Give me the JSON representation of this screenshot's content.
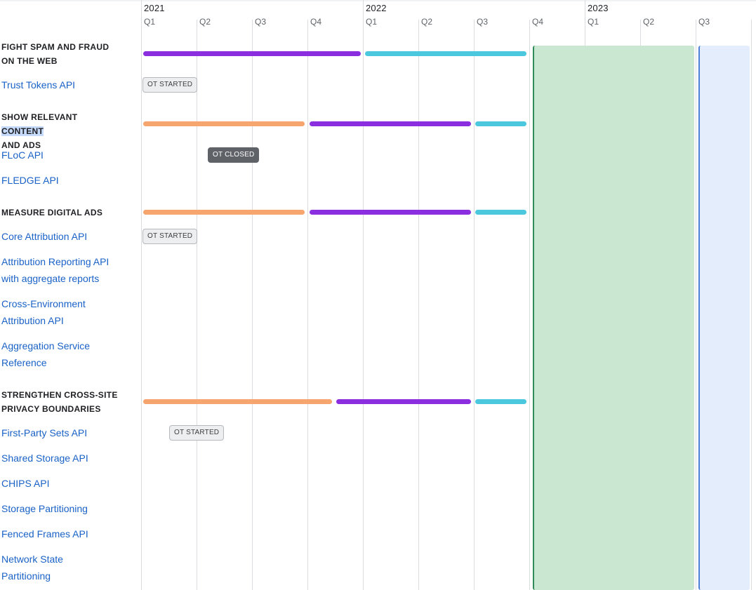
{
  "timeline": {
    "years": [
      "2021",
      "2022",
      "2023"
    ],
    "quarters": [
      "Q1",
      "Q2",
      "Q3",
      "Q4",
      "Q1",
      "Q2",
      "Q3",
      "Q4",
      "Q1",
      "Q2",
      "Q3"
    ]
  },
  "sections": [
    {
      "heading_lines": [
        "FIGHT SPAM AND FRAUD",
        "ON THE WEB"
      ],
      "apis": [
        "Trust Tokens API"
      ]
    },
    {
      "heading_line1_pre": "SHOW RELEVANT ",
      "heading_line1_hl": "CONTENT",
      "heading_line2": "AND ADS",
      "apis": [
        "FLoC API",
        "FLEDGE API"
      ]
    },
    {
      "heading_lines": [
        "MEASURE DIGITAL ADS"
      ],
      "apis": [
        "Core Attribution API",
        "Attribution Reporting API",
        "with aggregate reports",
        "Cross-Environment",
        "Attribution API",
        "Aggregation Service",
        "Reference"
      ]
    },
    {
      "heading_lines": [
        "STRENGTHEN CROSS-SITE",
        "PRIVACY BOUNDARIES"
      ],
      "apis": [
        "First-Party Sets API",
        "Shared Storage API",
        "CHIPS API",
        "Storage Partitioning",
        "Fenced Frames API",
        "Network State",
        "Partitioning"
      ]
    }
  ],
  "badges": {
    "trust_tokens": "OT STARTED",
    "floc": "OT CLOSED",
    "core_attribution": "OT STARTED",
    "first_party_sets": "OT STARTED"
  },
  "colors": {
    "purple": "#8a2ee0",
    "teal": "#4bc8dd",
    "orange": "#f5a56d",
    "link": "#1a62c7",
    "green_block": "#c9e7d1",
    "blue_block": "#e4edfc"
  }
}
